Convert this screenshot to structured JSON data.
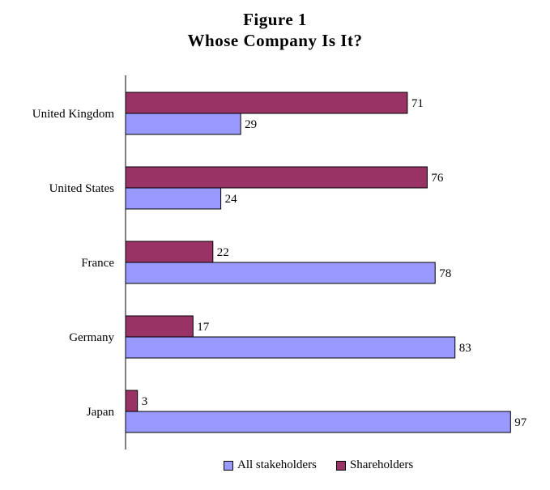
{
  "chart_data": {
    "type": "bar",
    "orientation": "horizontal",
    "title": "Figure 1",
    "subtitle": "Whose Company Is It?",
    "categories": [
      "United Kingdom",
      "United States",
      "France",
      "Germany",
      "Japan"
    ],
    "series": [
      {
        "name": "Shareholders",
        "color": "#993366",
        "values": [
          71,
          76,
          22,
          17,
          3
        ]
      },
      {
        "name": "All stakeholders",
        "color": "#9999ff",
        "values": [
          29,
          24,
          78,
          83,
          97
        ]
      }
    ],
    "xlim": [
      0,
      100
    ],
    "grid": false,
    "legend_position": "bottom"
  },
  "legend": [
    {
      "label": "All stakeholders",
      "color": "#9999ff"
    },
    {
      "label": "Shareholders",
      "color": "#993366"
    }
  ]
}
